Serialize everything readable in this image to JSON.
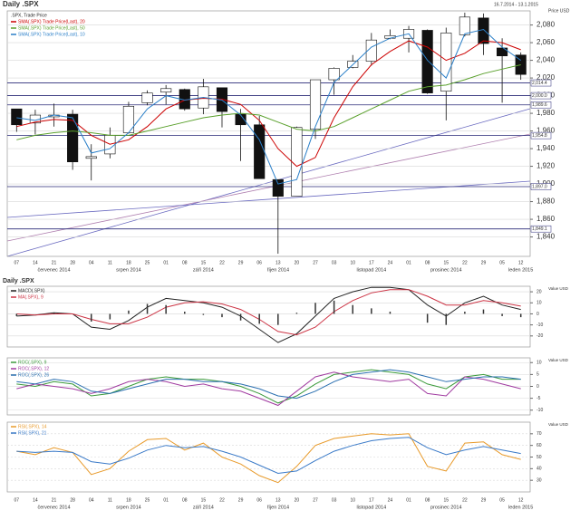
{
  "header": {
    "title": "Daily .SPX",
    "range": "16.7.2014 - 13.1.2015",
    "unit": "Price USD"
  },
  "months": [
    "červenec 2014",
    "srpen 2014",
    "září 2014",
    "říjen 2014",
    "listopad 2014",
    "prosinec 2014",
    "leden 2015"
  ],
  "chart_data": [
    {
      "type": "candlestick",
      "name": ".SPX, Trade Price",
      "categories": [
        "07",
        "14",
        "21",
        "28",
        "04",
        "11",
        "18",
        "25",
        "01",
        "08",
        "15",
        "22",
        "29",
        "06",
        "13",
        "20",
        "27",
        "03",
        "10",
        "17",
        "24",
        "01",
        "08",
        "15",
        "22",
        "29",
        "05",
        "12"
      ],
      "open": [
        1985,
        1969,
        1976,
        1979,
        1929,
        1934,
        1958,
        1992,
        2004,
        2007,
        1986,
        2009,
        1979,
        1967,
        1905,
        1886,
        1962,
        2018,
        2032,
        2039,
        2065,
        2065,
        2074,
        2005,
        2069,
        2088,
        2054,
        2046
      ],
      "high": [
        1985,
        1984,
        1991,
        1984,
        1945,
        1964,
        1993,
        2006,
        2012,
        2008,
        2019,
        2009,
        1985,
        1977,
        1905,
        1965,
        2018,
        2032,
        2046,
        2071,
        2075,
        2079,
        2075,
        2077,
        2094,
        2093,
        2065,
        2049
      ],
      "low": [
        1959,
        1956,
        1965,
        1916,
        1904,
        1929,
        1957,
        1989,
        1990,
        1983,
        1979,
        1964,
        1926,
        1906,
        1821,
        1886,
        1951,
        2001,
        2031,
        2034,
        2064,
        2049,
        2002,
        1972,
        2067,
        2046,
        1992,
        2018
      ],
      "close": [
        1967,
        1978,
        1978,
        1925,
        1931,
        1955,
        1988,
        2003,
        2008,
        1985,
        2010,
        1982,
        1967,
        1906,
        1886,
        1964,
        2018,
        2031,
        2039,
        2063,
        2068,
        2075,
        2003,
        2071,
        2089,
        2059,
        2045,
        2024
      ],
      "series": [
        {
          "name": "SMA(.SPX) Trade Price(Last), 20",
          "color": "#cc0000",
          "values": [
            1965,
            1970,
            1973,
            1972,
            1955,
            1945,
            1950,
            1965,
            1985,
            1995,
            1997,
            1996,
            1990,
            1972,
            1940,
            1920,
            1930,
            1975,
            2010,
            2035,
            2050,
            2062,
            2055,
            2040,
            2048,
            2062,
            2060,
            2052
          ]
        },
        {
          "name": "SMA(.SPX) Trade Price(Last), 50",
          "color": "#5aa02c",
          "values": [
            1950,
            1955,
            1958,
            1960,
            1958,
            1955,
            1955,
            1960,
            1965,
            1970,
            1975,
            1978,
            1980,
            1978,
            1970,
            1962,
            1960,
            1965,
            1975,
            1985,
            1995,
            2005,
            2010,
            2012,
            2018,
            2025,
            2030,
            2035
          ]
        },
        {
          "name": "SMA(.SPX) Trade Price(Last), 10",
          "color": "#2a7fc8",
          "values": [
            1975,
            1972,
            1978,
            1975,
            1935,
            1940,
            1958,
            1985,
            2000,
            1995,
            1998,
            1995,
            1978,
            1950,
            1900,
            1905,
            1965,
            2015,
            2035,
            2055,
            2065,
            2070,
            2040,
            2020,
            2070,
            2075,
            2055,
            2040
          ]
        }
      ],
      "levels": [
        {
          "value": 2014.4,
          "label": "2,014.4"
        },
        {
          "value": 2000,
          "label": "2,000.0"
        },
        {
          "value": 1989.6,
          "label": "1,989.6"
        },
        {
          "value": 1954.8,
          "label": "1,954.8"
        },
        {
          "value": 1897,
          "label": "1,897.0"
        },
        {
          "value": 1849.1,
          "label": "1,849.1"
        }
      ],
      "ylim": [
        1818,
        2096
      ],
      "yticks": [
        {
          "value": 1840,
          "label": "1,840"
        },
        {
          "value": 1860,
          "label": "1,860"
        },
        {
          "value": 1880,
          "label": "1,880"
        },
        {
          "value": 1900,
          "label": "1,900"
        },
        {
          "value": 1920,
          "label": "1,920"
        },
        {
          "value": 1940,
          "label": "1,940"
        },
        {
          "value": 1960,
          "label": "1,960"
        },
        {
          "value": 1980,
          "label": "1,980"
        },
        {
          "value": 2000,
          "label": "2,000"
        },
        {
          "value": 2020,
          "label": "2,020"
        },
        {
          "value": 2040,
          "label": "2,040"
        },
        {
          "value": 2060,
          "label": "2,060"
        },
        {
          "value": 2080,
          "label": "2,080"
        }
      ],
      "grid": true
    },
    {
      "type": "line",
      "title": "Daily .SPX",
      "unit": "Value USD",
      "series": [
        {
          "name": "MACD(.SPX)",
          "color": "#222222",
          "values": [
            -2,
            -1,
            1,
            0,
            -12,
            -14,
            -6,
            6,
            14,
            12,
            10,
            6,
            -2,
            -14,
            -26,
            -18,
            -2,
            14,
            20,
            24,
            24,
            22,
            8,
            -2,
            10,
            16,
            8,
            4
          ]
        },
        {
          "name": "MA(.SPX), 9",
          "color": "#cc3344",
          "values": [
            0,
            -1,
            0,
            0,
            -5,
            -9,
            -9,
            -3,
            6,
            10,
            11,
            9,
            4,
            -5,
            -16,
            -19,
            -12,
            2,
            12,
            19,
            22,
            22,
            16,
            8,
            8,
            12,
            10,
            7
          ]
        },
        {
          "style": "bar",
          "color": "#333333",
          "values": [
            -2,
            0,
            1,
            0,
            -7,
            -5,
            3,
            9,
            8,
            2,
            -1,
            -3,
            -6,
            -9,
            -10,
            1,
            10,
            12,
            8,
            5,
            2,
            0,
            -8,
            -10,
            2,
            4,
            -2,
            -3
          ]
        }
      ],
      "ylim": [
        -30,
        25
      ],
      "yticks": [
        -20,
        -10,
        0,
        10,
        20
      ],
      "grid": true
    },
    {
      "type": "line",
      "unit": "Value USD",
      "series": [
        {
          "name": "ROC(.SPX), 9",
          "color": "#3a9a3a",
          "values": [
            1,
            0,
            2,
            1,
            -4,
            -3,
            0,
            3,
            4,
            3,
            3,
            2,
            0,
            -3,
            -7,
            -4,
            1,
            5,
            6,
            7,
            6,
            5,
            1,
            -1,
            4,
            5,
            3,
            3
          ]
        },
        {
          "name": "ROC(.SPX), 12",
          "color": "#a03aa0",
          "values": [
            -1,
            1,
            0,
            -1,
            -3,
            -1,
            2,
            3,
            2,
            0,
            1,
            -1,
            -2,
            -5,
            -8,
            -2,
            4,
            6,
            4,
            3,
            2,
            3,
            -3,
            -4,
            4,
            3,
            1,
            -1
          ]
        },
        {
          "name": "ROC(.SPX), 26",
          "color": "#2a6fb0",
          "values": [
            2,
            1,
            3,
            2,
            -2,
            -3,
            -1,
            1,
            3,
            3,
            2,
            2,
            1,
            -1,
            -4,
            -5,
            -2,
            2,
            5,
            6,
            7,
            6,
            4,
            2,
            3,
            4,
            4,
            3
          ]
        }
      ],
      "ylim": [
        -12,
        12
      ],
      "yticks": [
        -10,
        -5,
        0,
        5,
        10
      ],
      "grid": true
    },
    {
      "type": "line",
      "unit": "Value USD",
      "series": [
        {
          "name": "RSI(.SPX), 14",
          "color": "#e89a2a",
          "values": [
            55,
            52,
            58,
            54,
            35,
            40,
            55,
            65,
            66,
            56,
            62,
            50,
            44,
            34,
            28,
            42,
            60,
            66,
            68,
            70,
            69,
            70,
            42,
            38,
            62,
            63,
            52,
            48
          ]
        },
        {
          "name": "RSI(.SPX), 21",
          "color": "#3a7ac8",
          "values": [
            55,
            54,
            55,
            54,
            46,
            44,
            49,
            56,
            60,
            58,
            59,
            55,
            50,
            43,
            36,
            38,
            47,
            55,
            60,
            64,
            66,
            67,
            58,
            52,
            56,
            59,
            56,
            53
          ]
        }
      ],
      "ylim": [
        20,
        80
      ],
      "yticks": [
        30,
        40,
        50,
        60,
        70
      ],
      "grid": true
    }
  ]
}
